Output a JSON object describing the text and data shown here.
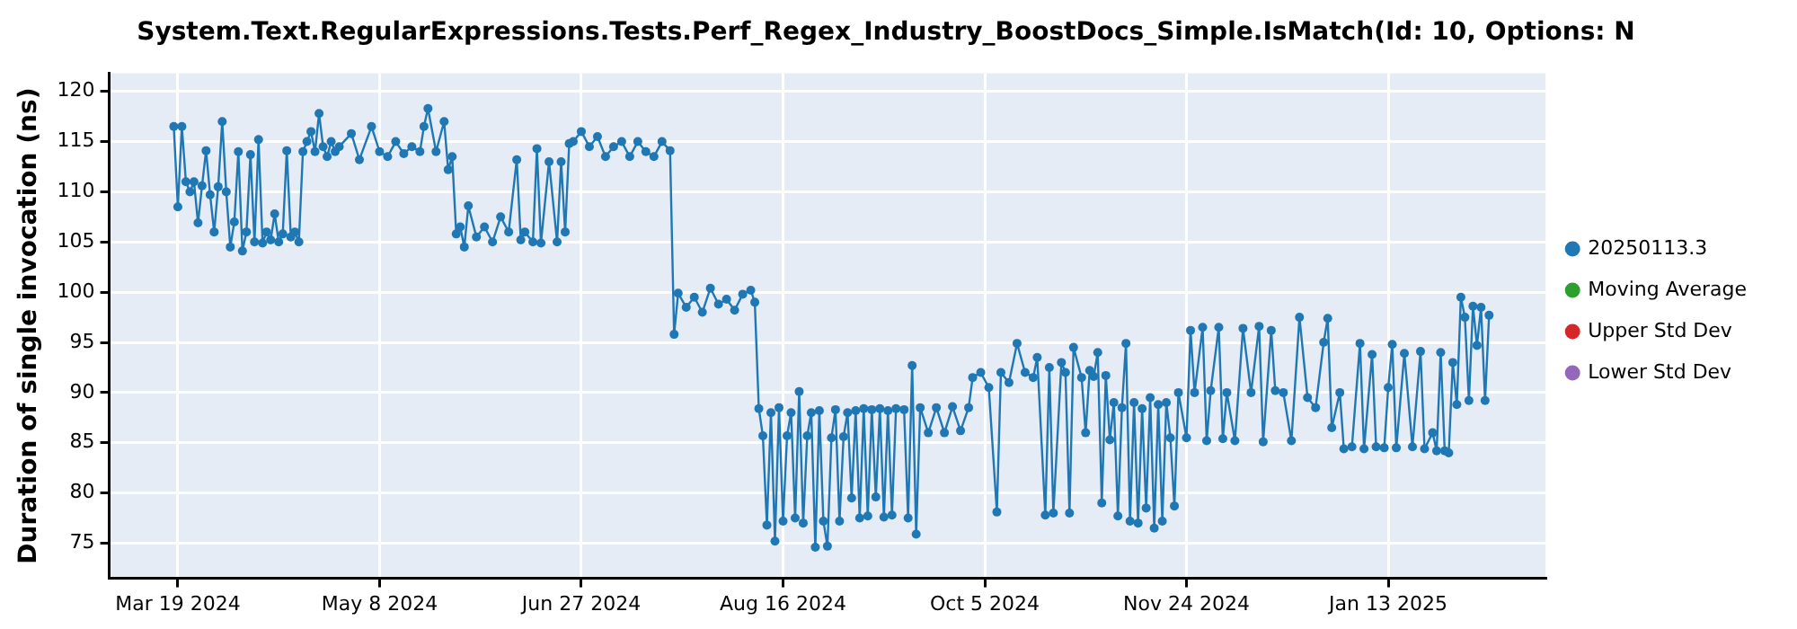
{
  "chart_data": {
    "type": "line",
    "title": "System.Text.RegularExpressions.Tests.Perf_Regex_Industry_BoostDocs_Simple.IsMatch(Id: 10, Options: N",
    "ylabel": "Duration of single invocation (ns)",
    "x": [
      "2024-03-18",
      "2024-03-19",
      "2024-03-20",
      "2024-03-21",
      "2024-03-22",
      "2024-03-23",
      "2024-03-24",
      "2024-03-25",
      "2024-03-26",
      "2024-03-27",
      "2024-03-28",
      "2024-03-29",
      "2024-03-30",
      "2024-03-31",
      "2024-04-01",
      "2024-04-02",
      "2024-04-03",
      "2024-04-04",
      "2024-04-05",
      "2024-04-06",
      "2024-04-07",
      "2024-04-08",
      "2024-04-09",
      "2024-04-10",
      "2024-04-11",
      "2024-04-12",
      "2024-04-13",
      "2024-04-14",
      "2024-04-15",
      "2024-04-16",
      "2024-04-17",
      "2024-04-18",
      "2024-04-19",
      "2024-04-20",
      "2024-04-21",
      "2024-04-22",
      "2024-04-23",
      "2024-04-24",
      "2024-04-25",
      "2024-04-26",
      "2024-04-27",
      "2024-04-28",
      "2024-05-01",
      "2024-05-03",
      "2024-05-06",
      "2024-05-08",
      "2024-05-10",
      "2024-05-12",
      "2024-05-14",
      "2024-05-16",
      "2024-05-18",
      "2024-05-19",
      "2024-05-20",
      "2024-05-22",
      "2024-05-24",
      "2024-05-25",
      "2024-05-26",
      "2024-05-27",
      "2024-05-28",
      "2024-05-29",
      "2024-05-30",
      "2024-06-01",
      "2024-06-03",
      "2024-06-05",
      "2024-06-07",
      "2024-06-09",
      "2024-06-11",
      "2024-06-12",
      "2024-06-13",
      "2024-06-15",
      "2024-06-16",
      "2024-06-17",
      "2024-06-19",
      "2024-06-21",
      "2024-06-22",
      "2024-06-23",
      "2024-06-24",
      "2024-06-25",
      "2024-06-27",
      "2024-06-29",
      "2024-07-01",
      "2024-07-03",
      "2024-07-05",
      "2024-07-07",
      "2024-07-09",
      "2024-07-11",
      "2024-07-13",
      "2024-07-15",
      "2024-07-17",
      "2024-07-19",
      "2024-07-20",
      "2024-07-21",
      "2024-07-23",
      "2024-07-25",
      "2024-07-27",
      "2024-07-29",
      "2024-07-31",
      "2024-08-02",
      "2024-08-04",
      "2024-08-06",
      "2024-08-08",
      "2024-08-09",
      "2024-08-10",
      "2024-08-11",
      "2024-08-12",
      "2024-08-13",
      "2024-08-14",
      "2024-08-15",
      "2024-08-16",
      "2024-08-17",
      "2024-08-18",
      "2024-08-19",
      "2024-08-20",
      "2024-08-21",
      "2024-08-22",
      "2024-08-23",
      "2024-08-24",
      "2024-08-25",
      "2024-08-26",
      "2024-08-27",
      "2024-08-28",
      "2024-08-29",
      "2024-08-30",
      "2024-08-31",
      "2024-09-01",
      "2024-09-02",
      "2024-09-03",
      "2024-09-04",
      "2024-09-05",
      "2024-09-06",
      "2024-09-07",
      "2024-09-08",
      "2024-09-09",
      "2024-09-10",
      "2024-09-11",
      "2024-09-12",
      "2024-09-13",
      "2024-09-15",
      "2024-09-16",
      "2024-09-17",
      "2024-09-18",
      "2024-09-19",
      "2024-09-21",
      "2024-09-23",
      "2024-09-25",
      "2024-09-27",
      "2024-09-29",
      "2024-10-01",
      "2024-10-02",
      "2024-10-04",
      "2024-10-06",
      "2024-10-08",
      "2024-10-09",
      "2024-10-11",
      "2024-10-13",
      "2024-10-15",
      "2024-10-17",
      "2024-10-18",
      "2024-10-20",
      "2024-10-21",
      "2024-10-22",
      "2024-10-24",
      "2024-10-25",
      "2024-10-26",
      "2024-10-27",
      "2024-10-29",
      "2024-10-30",
      "2024-10-31",
      "2024-11-01",
      "2024-11-02",
      "2024-11-03",
      "2024-11-04",
      "2024-11-05",
      "2024-11-06",
      "2024-11-07",
      "2024-11-08",
      "2024-11-09",
      "2024-11-10",
      "2024-11-11",
      "2024-11-12",
      "2024-11-13",
      "2024-11-14",
      "2024-11-15",
      "2024-11-16",
      "2024-11-17",
      "2024-11-18",
      "2024-11-19",
      "2024-11-20",
      "2024-11-21",
      "2024-11-22",
      "2024-11-24",
      "2024-11-25",
      "2024-11-26",
      "2024-11-28",
      "2024-11-29",
      "2024-11-30",
      "2024-12-02",
      "2024-12-03",
      "2024-12-04",
      "2024-12-06",
      "2024-12-08",
      "2024-12-10",
      "2024-12-12",
      "2024-12-13",
      "2024-12-15",
      "2024-12-16",
      "2024-12-18",
      "2024-12-20",
      "2024-12-22",
      "2024-12-24",
      "2024-12-26",
      "2024-12-28",
      "2024-12-29",
      "2024-12-30",
      "2025-01-01",
      "2025-01-02",
      "2025-01-04",
      "2025-01-06",
      "2025-01-07",
      "2025-01-09",
      "2025-01-10",
      "2025-01-12",
      "2025-01-13",
      "2025-01-14",
      "2025-01-15",
      "2025-01-17",
      "2025-01-19",
      "2025-01-21",
      "2025-01-22",
      "2025-01-24",
      "2025-01-25",
      "2025-01-26",
      "2025-01-27",
      "2025-01-28",
      "2025-01-29",
      "2025-01-30",
      "2025-01-31",
      "2025-02-01",
      "2025-02-02",
      "2025-02-03",
      "2025-02-04",
      "2025-02-05",
      "2025-02-06",
      "2025-02-07"
    ],
    "series": [
      {
        "name": "20250113.3",
        "color": "#1f77b4",
        "values": [
          116.5,
          108.5,
          116.5,
          111,
          110,
          111,
          106.9,
          110.6,
          114.1,
          109.7,
          106,
          110.5,
          117,
          110,
          104.5,
          107,
          114,
          104.1,
          106,
          113.7,
          105,
          115.2,
          104.9,
          106,
          105.2,
          107.8,
          105,
          105.8,
          114.1,
          105.5,
          106,
          105,
          114,
          115,
          116,
          114,
          117.8,
          114.5,
          113.5,
          115,
          114,
          114.5,
          115.8,
          113.2,
          116.5,
          114,
          113.5,
          115,
          113.8,
          114.5,
          114,
          116.5,
          118.3,
          114,
          117,
          112.2,
          113.5,
          105.8,
          106.5,
          104.5,
          108.6,
          105.5,
          106.5,
          105,
          107.5,
          106,
          113.2,
          105.2,
          106,
          105,
          114.3,
          104.9,
          113,
          105,
          113,
          106,
          114.8,
          115,
          116,
          114.5,
          115.5,
          113.5,
          114.5,
          115,
          113.5,
          115,
          114,
          113.5,
          115,
          114.1,
          95.8,
          99.9,
          98.5,
          99.5,
          98,
          100.4,
          98.8,
          99.3,
          98.2,
          99.8,
          100.2,
          99,
          88.4,
          85.7,
          76.8,
          88,
          75.2,
          88.5,
          77.2,
          85.7,
          88,
          77.5,
          90.1,
          77,
          85.7,
          88,
          74.6,
          88.2,
          77.2,
          74.7,
          85.5,
          88.3,
          77.2,
          85.6,
          88,
          79.5,
          88.2,
          77.5,
          88.4,
          77.7,
          88.3,
          79.6,
          88.4,
          77.6,
          88.2,
          77.8,
          88.4,
          88.3,
          77.5,
          92.7,
          75.9,
          88.5,
          86,
          88.5,
          86,
          88.6,
          86.2,
          88.5,
          91.5,
          92,
          90.5,
          78.1,
          92,
          91,
          94.9,
          92,
          91.5,
          93.5,
          77.8,
          92.5,
          78,
          93,
          92,
          78,
          94.5,
          91.5,
          86,
          92.2,
          91.6,
          94,
          79,
          91.7,
          85.3,
          89,
          77.7,
          88.5,
          94.9,
          77.2,
          89,
          77,
          88.4,
          78.5,
          89.5,
          76.5,
          88.8,
          77.2,
          89,
          85.5,
          78.7,
          90,
          85.5,
          96.2,
          90,
          96.5,
          85.2,
          90.2,
          96.5,
          85.4,
          90,
          85.2,
          96.4,
          90,
          96.6,
          85.1,
          96.2,
          90.2,
          90,
          85.2,
          97.5,
          89.5,
          88.5,
          95,
          97.4,
          86.5,
          90,
          84.4,
          84.6,
          94.9,
          84.4,
          93.8,
          84.6,
          84.5,
          90.5,
          94.8,
          84.5,
          93.9,
          84.6,
          94.1,
          84.4,
          86,
          84.2,
          94,
          84.2,
          84,
          93,
          88.8,
          99.5,
          97.5,
          89.2,
          98.6,
          94.7,
          98.5,
          89.2,
          97.7
        ]
      },
      {
        "name": "Moving Average",
        "color": "#2ca02c",
        "values": [
          null,
          null,
          null,
          null,
          null,
          null,
          null,
          null,
          null,
          null,
          null,
          null,
          null,
          null,
          null,
          null,
          null,
          null,
          null,
          null,
          null,
          null,
          null,
          null,
          null,
          null,
          null,
          null,
          null,
          null,
          null,
          null,
          null,
          null,
          null,
          null,
          null,
          null,
          null,
          null,
          null,
          null,
          null,
          null,
          null,
          null,
          null,
          null,
          null,
          null,
          null,
          null,
          null,
          null,
          null,
          null,
          null,
          null,
          null,
          null,
          null,
          null,
          null,
          null,
          null,
          null,
          null,
          null,
          null,
          null,
          null,
          null,
          null,
          null,
          null,
          null,
          null,
          null,
          null,
          null,
          null,
          null,
          null,
          null,
          null,
          null,
          null,
          null,
          null,
          null,
          null,
          null,
          null,
          null,
          null,
          null,
          null,
          null,
          null,
          null,
          null,
          null,
          null,
          null,
          null,
          null,
          null,
          null,
          null,
          null,
          null,
          null,
          null,
          null,
          null,
          null,
          null,
          null,
          null,
          null,
          null,
          null,
          null,
          null,
          null,
          null,
          null,
          null,
          null,
          null,
          null,
          null,
          null,
          null,
          null,
          null,
          null,
          null,
          null,
          null,
          null,
          null,
          null,
          null,
          null,
          null,
          null,
          null,
          null,
          null,
          null,
          null,
          null,
          null,
          null,
          null,
          null,
          null,
          null,
          null,
          null,
          null,
          null,
          null,
          null,
          null,
          null,
          null,
          null,
          null,
          null,
          null,
          null,
          null,
          null,
          null,
          null,
          null,
          null,
          null,
          null,
          null,
          null,
          null,
          null,
          null,
          null,
          null,
          null,
          null,
          null,
          null,
          null,
          null,
          null,
          null,
          null,
          null,
          null,
          null,
          null,
          null,
          null,
          null,
          null,
          null,
          null,
          null,
          null,
          null,
          null,
          null,
          null,
          null,
          null,
          null,
          null,
          null,
          null,
          null,
          null,
          null,
          null,
          null,
          null,
          null,
          null,
          null,
          null,
          null,
          null,
          null,
          null,
          null,
          null,
          null,
          null,
          null,
          null,
          null,
          null,
          null,
          null,
          null
        ]
      },
      {
        "name": "Upper Std Dev",
        "color": "#d62728",
        "values": [
          null,
          null,
          null,
          null,
          null,
          null,
          null,
          null,
          null,
          null,
          null,
          null,
          null,
          null,
          null,
          null,
          null,
          null,
          null,
          null,
          null,
          null,
          null,
          null,
          null,
          null,
          null,
          null,
          null,
          null,
          null,
          null,
          null,
          null,
          null,
          null,
          null,
          null,
          null,
          null,
          null,
          null,
          null,
          null,
          null,
          null,
          null,
          null,
          null,
          null,
          null,
          null,
          null,
          null,
          null,
          null,
          null,
          null,
          null,
          null,
          null,
          null,
          null,
          null,
          null,
          null,
          null,
          null,
          null,
          null,
          null,
          null,
          null,
          null,
          null,
          null,
          null,
          null,
          null,
          null,
          null,
          null,
          null,
          null,
          null,
          null,
          null,
          null,
          null,
          null,
          null,
          null,
          null,
          null,
          null,
          null,
          null,
          null,
          null,
          null,
          null,
          null,
          null,
          null,
          null,
          null,
          null,
          null,
          null,
          null,
          null,
          null,
          null,
          null,
          null,
          null,
          null,
          null,
          null,
          null,
          null,
          null,
          null,
          null,
          null,
          null,
          null,
          null,
          null,
          null,
          null,
          null,
          null,
          null,
          null,
          null,
          null,
          null,
          null,
          null,
          null,
          null,
          null,
          null,
          null,
          null,
          null,
          null,
          null,
          null,
          null,
          null,
          null,
          null,
          null,
          null,
          null,
          null,
          null,
          null,
          null,
          null,
          null,
          null,
          null,
          null,
          null,
          null,
          null,
          null,
          null,
          null,
          null,
          null,
          null,
          null,
          null,
          null,
          null,
          null,
          null,
          null,
          null,
          null,
          null,
          null,
          null,
          null,
          null,
          null,
          null,
          null,
          null,
          null,
          null,
          null,
          null,
          null,
          null,
          null,
          null,
          null,
          null,
          null,
          null,
          null,
          null,
          null,
          null,
          null,
          null,
          null,
          null,
          null,
          null,
          null,
          null,
          null,
          null,
          null,
          null,
          null,
          null,
          null,
          null,
          null,
          null,
          null,
          null,
          null,
          null,
          null,
          null,
          null,
          null,
          null,
          null,
          null,
          null,
          null,
          null,
          null,
          null,
          null
        ]
      },
      {
        "name": "Lower Std Dev",
        "color": "#9467bd",
        "values": [
          null,
          null,
          null,
          null,
          null,
          null,
          null,
          null,
          null,
          null,
          null,
          null,
          null,
          null,
          null,
          null,
          null,
          null,
          null,
          null,
          null,
          null,
          null,
          null,
          null,
          null,
          null,
          null,
          null,
          null,
          null,
          null,
          null,
          null,
          null,
          null,
          null,
          null,
          null,
          null,
          null,
          null,
          null,
          null,
          null,
          null,
          null,
          null,
          null,
          null,
          null,
          null,
          null,
          null,
          null,
          null,
          null,
          null,
          null,
          null,
          null,
          null,
          null,
          null,
          null,
          null,
          null,
          null,
          null,
          null,
          null,
          null,
          null,
          null,
          null,
          null,
          null,
          null,
          null,
          null,
          null,
          null,
          null,
          null,
          null,
          null,
          null,
          null,
          null,
          null,
          null,
          null,
          null,
          null,
          null,
          null,
          null,
          null,
          null,
          null,
          null,
          null,
          null,
          null,
          null,
          null,
          null,
          null,
          null,
          null,
          null,
          null,
          null,
          null,
          null,
          null,
          null,
          null,
          null,
          null,
          null,
          null,
          null,
          null,
          null,
          null,
          null,
          null,
          null,
          null,
          null,
          null,
          null,
          null,
          null,
          null,
          null,
          null,
          null,
          null,
          null,
          null,
          null,
          null,
          null,
          null,
          null,
          null,
          null,
          null,
          null,
          null,
          null,
          null,
          null,
          null,
          null,
          null,
          null,
          null,
          null,
          null,
          null,
          null,
          null,
          null,
          null,
          null,
          null,
          null,
          null,
          null,
          null,
          null,
          null,
          null,
          null,
          null,
          null,
          null,
          null,
          null,
          null,
          null,
          null,
          null,
          null,
          null,
          null,
          null,
          null,
          null,
          null,
          null,
          null,
          null,
          null,
          null,
          null,
          null,
          null,
          null,
          null,
          null,
          null,
          null,
          null,
          null,
          null,
          null,
          null,
          null,
          null,
          null,
          null,
          null,
          null,
          null,
          null,
          null,
          null,
          null,
          null,
          null,
          null,
          null,
          null,
          null,
          null,
          null,
          null,
          null,
          null,
          null,
          null,
          null,
          null,
          null,
          null,
          null,
          null,
          null,
          null,
          null
        ]
      }
    ],
    "xlim": [
      "2024-03-02",
      "2025-02-21"
    ],
    "xticks": [
      {
        "value": "2024-03-19",
        "label": "Mar 19 2024"
      },
      {
        "value": "2024-05-08",
        "label": "May 8 2024"
      },
      {
        "value": "2024-06-27",
        "label": "Jun 27 2024"
      },
      {
        "value": "2024-08-16",
        "label": "Aug 16 2024"
      },
      {
        "value": "2024-10-05",
        "label": "Oct 5 2024"
      },
      {
        "value": "2024-11-24",
        "label": "Nov 24 2024"
      },
      {
        "value": "2025-01-13",
        "label": "Jan 13 2025"
      }
    ],
    "ylim": [
      71.5,
      121.8
    ],
    "yticks": [
      75,
      80,
      85,
      90,
      95,
      100,
      105,
      110,
      115,
      120
    ],
    "grid": true,
    "legend": "right",
    "marker": "circle",
    "line_style": "solid"
  }
}
